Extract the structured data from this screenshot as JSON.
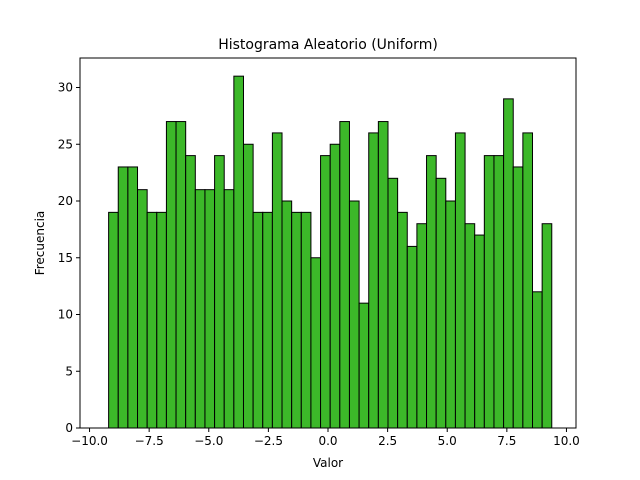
{
  "chart_data": {
    "type": "bar",
    "title": "Histograma Aleatorio (Uniform)",
    "xlabel": "Valor",
    "ylabel": "Frecuencia",
    "xlim": [
      -10.4,
      10.4
    ],
    "ylim": [
      0,
      32.6
    ],
    "bin_start": -9.2,
    "bin_width": 0.404,
    "values": [
      19,
      23,
      23,
      21,
      19,
      19,
      27,
      27,
      24,
      21,
      21,
      24,
      21,
      31,
      25,
      19,
      19,
      26,
      20,
      19,
      19,
      15,
      24,
      25,
      27,
      20,
      11,
      26,
      27,
      22,
      19,
      16,
      18,
      24,
      22,
      20,
      26,
      18,
      17,
      24,
      24,
      29,
      23,
      26,
      12,
      18
    ],
    "x_ticks": [
      -10.0,
      -7.5,
      -5.0,
      -2.5,
      0.0,
      2.5,
      5.0,
      7.5,
      10.0
    ],
    "x_tick_labels": [
      "−10.0",
      "−7.5",
      "−5.0",
      "−2.5",
      "0.0",
      "2.5",
      "5.0",
      "7.5",
      "10.0"
    ],
    "y_ticks": [
      0,
      5,
      10,
      15,
      20,
      25,
      30
    ],
    "y_tick_labels": [
      "0",
      "5",
      "10",
      "15",
      "20",
      "25",
      "30"
    ],
    "bar_color": "#3cb829",
    "edge_color": "#000000",
    "grid": false
  }
}
